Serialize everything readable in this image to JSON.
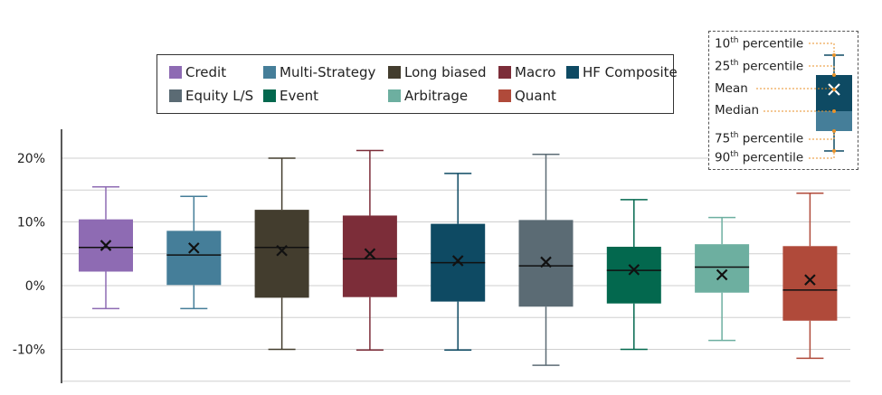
{
  "chart_data": {
    "type": "box",
    "y_ticks": [
      20,
      10,
      0,
      -10
    ],
    "y_tick_labels": [
      "20%",
      "10%",
      "0%",
      "-10%"
    ],
    "ylim": [
      -15,
      25
    ],
    "grid": true,
    "legend_position": "top-center",
    "series": [
      {
        "name": "Credit",
        "color": "#8E6BB3",
        "p10": -3.6,
        "p25": 2.2,
        "median": 6.0,
        "mean": 6.3,
        "p75": 10.4,
        "p90": 15.5
      },
      {
        "name": "Multi-Strategy",
        "color": "#457E99",
        "p10": -3.6,
        "p25": 0.1,
        "median": 4.8,
        "mean": 5.9,
        "p75": 8.6,
        "p90": 14.0
      },
      {
        "name": "Long biased",
        "color": "#433D2E",
        "p10": -10.0,
        "p25": -1.9,
        "median": 6.0,
        "mean": 5.5,
        "p75": 11.9,
        "p90": 20.0
      },
      {
        "name": "Macro",
        "color": "#7C2D39",
        "p10": -10.1,
        "p25": -1.8,
        "median": 4.2,
        "mean": 5.0,
        "p75": 11.0,
        "p90": 21.2
      },
      {
        "name": "HF Composite",
        "color": "#0E4A63",
        "p10": -10.1,
        "p25": -2.5,
        "median": 3.6,
        "mean": 3.9,
        "p75": 9.7,
        "p90": 17.6
      },
      {
        "name": "Equity L/S",
        "color": "#5B6B74",
        "p10": -12.5,
        "p25": -3.3,
        "median": 3.1,
        "mean": 3.7,
        "p75": 10.3,
        "p90": 20.6
      },
      {
        "name": "Event",
        "color": "#03684E",
        "p10": -10.0,
        "p25": -2.8,
        "median": 2.4,
        "mean": 2.5,
        "p75": 6.1,
        "p90": 13.5
      },
      {
        "name": "Arbitrage",
        "color": "#6DAFA0",
        "p10": -8.6,
        "p25": -1.1,
        "median": 2.9,
        "mean": 1.7,
        "p75": 6.5,
        "p90": 10.7
      },
      {
        "name": "Quant",
        "color": "#B04A3A",
        "p10": -11.4,
        "p25": -5.5,
        "median": -0.7,
        "mean": 0.9,
        "p75": 6.2,
        "p90": 14.5
      }
    ]
  },
  "legend": {
    "row1": [
      {
        "label": "Credit",
        "color": "#8E6BB3"
      },
      {
        "label": "Multi-Strategy",
        "color": "#457E99"
      },
      {
        "label": "Long biased",
        "color": "#433D2E"
      },
      {
        "label": "Macro",
        "color": "#7C2D39"
      },
      {
        "label": "HF Composite",
        "color": "#0E4A63"
      }
    ],
    "row2": [
      {
        "label": "Equity L/S",
        "color": "#5B6B74"
      },
      {
        "label": "Event",
        "color": "#03684E"
      },
      {
        "label": "Arbitrage",
        "color": "#6DAFA0"
      },
      {
        "label": "Quant",
        "color": "#B04A3A"
      }
    ]
  },
  "key": {
    "p10_label": "10",
    "p25_label": "25",
    "mean_label": "Mean",
    "median_label": "Median",
    "p75_label": "75",
    "p90_label": "90",
    "ordinal_suffix": "th",
    "percentile_word": "percentile",
    "box_color": "#0E4A63",
    "box_lower_color": "#457E99",
    "leader_color": "#E8922A"
  }
}
